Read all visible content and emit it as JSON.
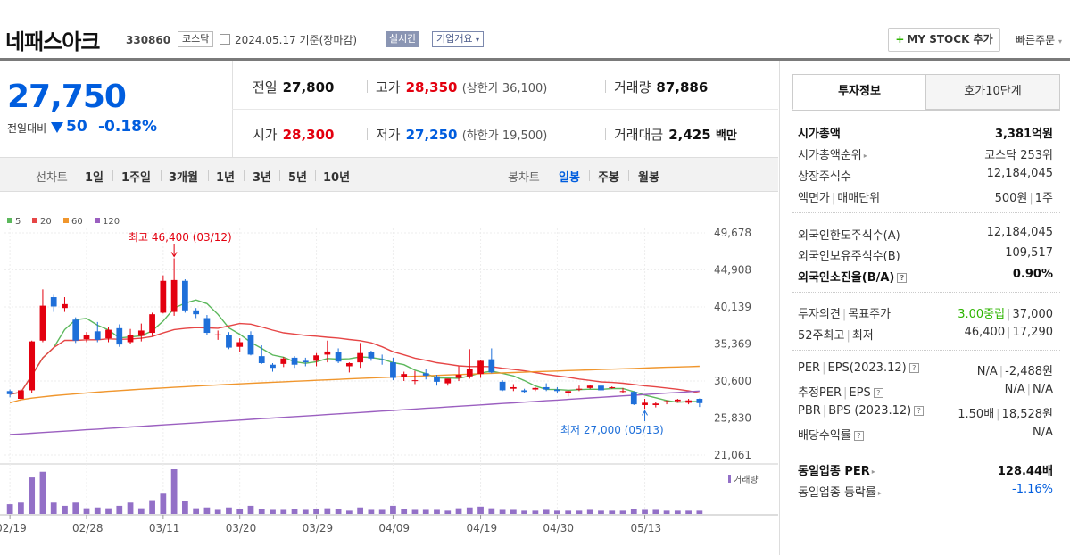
{
  "header": {
    "stock_name": "네패스아크",
    "stock_code": "330860",
    "market": "코스닥",
    "date_text": "2024.05.17 기준(장마감)",
    "realtime_label": "실시간",
    "company_label": "기업개요",
    "mystock_label": "MY STOCK 추가",
    "quick_order_label": "빠른주문"
  },
  "summary": {
    "current_price": "27,750",
    "change_label": "전일대비",
    "change_value": "50",
    "change_pct": "-0.18%",
    "prev_close_label": "전일",
    "prev_close": "27,800",
    "high_label": "고가",
    "high": "28,350",
    "upper_limit": "(상한가 36,100)",
    "volume_label": "거래량",
    "volume": "87,886",
    "open_label": "시가",
    "open": "28,300",
    "low_label": "저가",
    "low": "27,250",
    "lower_limit": "(하한가 19,500)",
    "trade_value_label": "거래대금",
    "trade_value": "2,425",
    "trade_value_unit": "백만"
  },
  "period_bar": {
    "line_title": "선차트",
    "line_options": [
      "1일",
      "1주일",
      "3개월",
      "1년",
      "3년",
      "5년",
      "10년"
    ],
    "candle_title": "봉차트",
    "candle_options": [
      "일봉",
      "주봉",
      "월봉"
    ],
    "active_candle": "일봉"
  },
  "chart_data": {
    "type": "candlestick",
    "legend": [
      {
        "name": "5",
        "color": "#5cb85c"
      },
      {
        "name": "20",
        "color": "#e64646"
      },
      {
        "name": "60",
        "color": "#f0962d"
      },
      {
        "name": "120",
        "color": "#9b5fc0"
      }
    ],
    "y_ticks": [
      "49,678",
      "44,908",
      "40,139",
      "35,369",
      "30,600",
      "25,830",
      "21,061"
    ],
    "y_tick_values": [
      49678,
      44908,
      40139,
      35369,
      30600,
      25830,
      21061
    ],
    "x_ticks": [
      "02/19",
      "02/28",
      "03/11",
      "03/20",
      "03/29",
      "04/09",
      "04/19",
      "04/30",
      "05/13"
    ],
    "x_tick_indices": [
      0,
      7,
      14,
      21,
      28,
      35,
      43,
      50,
      58
    ],
    "high_annotation": "최고 46,400 (03/12)",
    "high_annotation_index": 15,
    "high_annotation_value": 46400,
    "low_annotation": "최저 27,000 (05/13)",
    "low_annotation_index": 58,
    "low_annotation_value": 27000,
    "volume_label": "거래량",
    "candles": [
      [
        29300,
        29500,
        28500,
        28900,
        0.12
      ],
      [
        28300,
        29600,
        28000,
        29400,
        0.14
      ],
      [
        29400,
        35800,
        29100,
        35700,
        0.45
      ],
      [
        35800,
        42400,
        35600,
        40300,
        0.52
      ],
      [
        41400,
        41700,
        39500,
        40200,
        0.14
      ],
      [
        40000,
        41400,
        39500,
        40500,
        0.1
      ],
      [
        38500,
        38800,
        35500,
        35800,
        0.14
      ],
      [
        36000,
        36900,
        35600,
        36500,
        0.07
      ],
      [
        37000,
        38200,
        35600,
        35900,
        0.08
      ],
      [
        36100,
        37500,
        35600,
        37200,
        0.07
      ],
      [
        37400,
        37900,
        35000,
        35300,
        0.1
      ],
      [
        35600,
        37300,
        35400,
        36500,
        0.14
      ],
      [
        36400,
        38000,
        35700,
        37100,
        0.07
      ],
      [
        36800,
        39400,
        36400,
        39200,
        0.17
      ],
      [
        39400,
        44200,
        39300,
        43500,
        0.25
      ],
      [
        39500,
        46400,
        39000,
        43600,
        0.55
      ],
      [
        43500,
        43700,
        39400,
        39700,
        0.16
      ],
      [
        39700,
        40000,
        38700,
        39200,
        0.07
      ],
      [
        38700,
        39100,
        36500,
        36800,
        0.08
      ],
      [
        36600,
        37100,
        35900,
        36600,
        0.05
      ],
      [
        36500,
        36900,
        34700,
        34900,
        0.08
      ],
      [
        35000,
        36100,
        34300,
        35600,
        0.06
      ],
      [
        36500,
        37000,
        33900,
        34000,
        0.1
      ],
      [
        33800,
        35200,
        32800,
        32900,
        0.06
      ],
      [
        32700,
        32900,
        31800,
        32300,
        0.05
      ],
      [
        32800,
        33700,
        32400,
        33500,
        0.05
      ],
      [
        33600,
        33800,
        32300,
        32700,
        0.06
      ],
      [
        33200,
        33600,
        32500,
        33000,
        0.05
      ],
      [
        33200,
        34200,
        32500,
        33900,
        0.06
      ],
      [
        34000,
        35800,
        33000,
        34400,
        0.07
      ],
      [
        34300,
        34800,
        32900,
        33100,
        0.06
      ],
      [
        32500,
        33000,
        31700,
        32900,
        0.04
      ],
      [
        33000,
        35500,
        32300,
        34200,
        0.08
      ],
      [
        34300,
        34500,
        33200,
        33500,
        0.05
      ],
      [
        33400,
        34000,
        32700,
        33300,
        0.05
      ],
      [
        33000,
        33600,
        30700,
        31000,
        0.1
      ],
      [
        31100,
        31800,
        30600,
        31500,
        0.06
      ],
      [
        30600,
        31900,
        30200,
        30700,
        0.05
      ],
      [
        31600,
        32200,
        30800,
        31300,
        0.05
      ],
      [
        31200,
        31400,
        30000,
        30500,
        0.05
      ],
      [
        30300,
        30900,
        30000,
        30900,
        0.04
      ],
      [
        31000,
        32500,
        30600,
        31400,
        0.07
      ],
      [
        31200,
        34700,
        30900,
        32200,
        0.08
      ],
      [
        31500,
        33300,
        31000,
        33200,
        0.09
      ],
      [
        33400,
        34800,
        31600,
        31700,
        0.07
      ],
      [
        30500,
        30700,
        29300,
        29400,
        0.05
      ],
      [
        29600,
        30200,
        29300,
        29800,
        0.05
      ],
      [
        29400,
        29600,
        29000,
        29200,
        0.04
      ],
      [
        29500,
        29800,
        29300,
        29700,
        0.04
      ],
      [
        29800,
        30300,
        29300,
        29500,
        0.05
      ],
      [
        29500,
        29800,
        29000,
        29300,
        0.04
      ],
      [
        29100,
        29400,
        28600,
        29300,
        0.04
      ],
      [
        29500,
        30000,
        29300,
        29600,
        0.04
      ],
      [
        29700,
        30100,
        29600,
        30000,
        0.05
      ],
      [
        30000,
        30100,
        29300,
        29400,
        0.04
      ],
      [
        29700,
        29900,
        29600,
        29800,
        0.04
      ],
      [
        29300,
        29700,
        29000,
        29300,
        0.04
      ],
      [
        29200,
        29300,
        27500,
        27600,
        0.06
      ],
      [
        27500,
        28300,
        27000,
        27800,
        0.05
      ],
      [
        27500,
        27900,
        27200,
        27700,
        0.05
      ],
      [
        27900,
        28100,
        27600,
        28000,
        0.04
      ],
      [
        28000,
        28300,
        27800,
        28200,
        0.04
      ],
      [
        27800,
        28300,
        27600,
        28100,
        0.04
      ],
      [
        28300,
        28350,
        27250,
        27750,
        0.04
      ]
    ]
  },
  "right_panel": {
    "tabs": [
      "투자정보",
      "호가10단계"
    ],
    "rows1": [
      {
        "label": "시가총액",
        "value": "3,381억원"
      },
      {
        "label": "시가총액순위",
        "value": "코스닥 253위"
      },
      {
        "label": "상장주식수",
        "value": "12,184,045"
      },
      {
        "label": "액면가",
        "label2": "매매단위",
        "value": "500원",
        "value2": "1주"
      }
    ],
    "rows2": [
      {
        "label": "외국인한도주식수(A)",
        "value": "12,184,045"
      },
      {
        "label": "외국인보유주식수(B)",
        "value": "109,517"
      },
      {
        "label": "외국인소진율(B/A)",
        "value": "0.90%"
      }
    ],
    "rows3": [
      {
        "label": "투자의견",
        "label2": "목표주가",
        "value": "3.00중립",
        "value2": "37,000"
      },
      {
        "label": "52주최고",
        "label2": "최저",
        "value": "46,400",
        "value2": "17,290"
      }
    ],
    "rows4": [
      {
        "label": "PER",
        "label2": "EPS(2023.12)",
        "value": "N/A",
        "value2": "-2,488원"
      },
      {
        "label": "추정PER",
        "label2": "EPS",
        "value": "N/A",
        "value2": "N/A"
      },
      {
        "label": "PBR",
        "label2": "BPS (2023.12)",
        "value": "1.50배",
        "value2": "18,528원"
      },
      {
        "label": "배당수익률",
        "value": "N/A"
      }
    ],
    "rows5": [
      {
        "label": "동일업종 PER",
        "value": "128.44배"
      },
      {
        "label": "동일업종 등락률",
        "value": "-1.16%"
      }
    ]
  }
}
